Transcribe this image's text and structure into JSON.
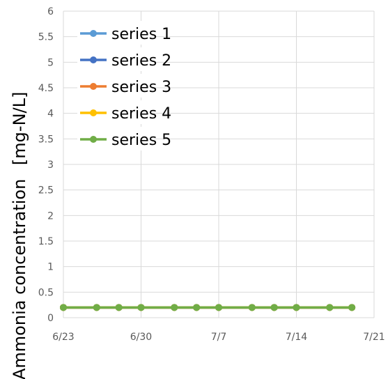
{
  "chart_data": {
    "type": "line",
    "title": "",
    "xlabel": "",
    "ylabel": "Ammonia concentration",
    "ylabel_unit": "[mg-N/L]",
    "ylim": [
      0,
      6
    ],
    "yticks": [
      0,
      0.5,
      1,
      1.5,
      2,
      2.5,
      3,
      3.5,
      4,
      4.5,
      5,
      5.5,
      6
    ],
    "ytick_labels": [
      "0",
      "0.5",
      "1",
      "1.5",
      "2",
      "2.5",
      "3",
      "3.5",
      "4",
      "4.5",
      "5",
      "5.5",
      "6"
    ],
    "xlim": [
      "6/23",
      "7/21"
    ],
    "xticks": [
      "6/23",
      "6/30",
      "7/7",
      "7/14",
      "7/21"
    ],
    "grid": true,
    "legend_position": "top-left",
    "x": [
      "6/23",
      "6/26",
      "6/28",
      "6/30",
      "7/3",
      "7/5",
      "7/7",
      "7/10",
      "7/12",
      "7/14",
      "7/17",
      "7/19"
    ],
    "series": [
      {
        "name": "series 1",
        "color": "#5B9BD5",
        "values": [
          0.2,
          0.2,
          0.2,
          0.2,
          0.2,
          0.2,
          0.2,
          0.2,
          0.2,
          0.2,
          0.2,
          0.2
        ]
      },
      {
        "name": "series 2",
        "color": "#4472C4",
        "values": [
          0.2,
          0.2,
          0.2,
          0.2,
          0.2,
          0.2,
          0.2,
          0.2,
          0.2,
          0.2,
          0.2,
          0.2
        ]
      },
      {
        "name": "series 3",
        "color": "#ED7D31",
        "values": [
          0.2,
          0.2,
          0.2,
          0.2,
          0.2,
          0.2,
          0.2,
          0.2,
          0.2,
          0.2,
          0.2,
          0.2
        ]
      },
      {
        "name": "series 4",
        "color": "#FFC000",
        "values": [
          0.2,
          0.2,
          0.2,
          0.2,
          0.2,
          0.2,
          0.2,
          0.2,
          0.2,
          0.2,
          0.2,
          0.2
        ]
      },
      {
        "name": "series 5",
        "color": "#70AD47",
        "values": [
          0.2,
          0.2,
          0.2,
          0.2,
          0.2,
          0.2,
          0.2,
          0.2,
          0.2,
          0.2,
          0.2,
          0.2
        ]
      }
    ]
  }
}
